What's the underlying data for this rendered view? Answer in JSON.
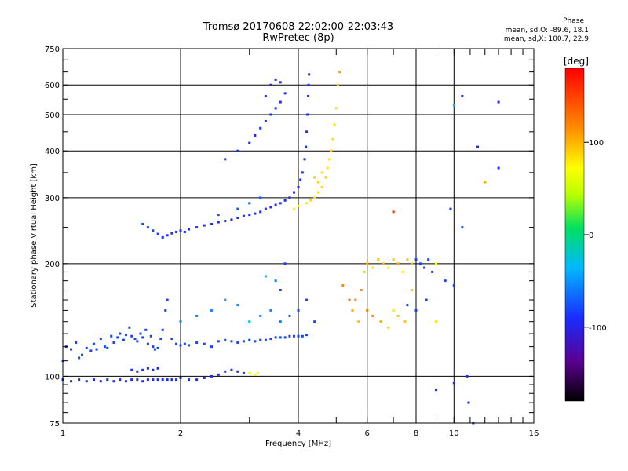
{
  "chart_data": {
    "type": "scatter",
    "title": "Tromsø 20170608 22:02:00-22:03:43",
    "subtitle": "RwPretec (8p)",
    "xlabel": "Frequency [MHz]",
    "ylabel": "Stationary phase Virtual Height [km]",
    "x_scale": "log",
    "y_scale": "log",
    "xlim": [
      1,
      16
    ],
    "ylim": [
      75,
      750
    ],
    "x_ticks": [
      1,
      2,
      4,
      6,
      8,
      10,
      16
    ],
    "y_ticks": [
      75,
      100,
      200,
      300,
      400,
      500,
      600,
      750
    ],
    "grid": true,
    "colorbar": {
      "label": "[deg]",
      "range": [
        -180,
        180
      ],
      "ticks": [
        100,
        0,
        -100
      ]
    },
    "phase_stats": {
      "header": "Phase",
      "O": "mean, sd,O: -89.6, 18.1",
      "X": "mean, sd,X: 100.7, 22.9"
    },
    "series": [
      {
        "points": [
          [
            1.0,
            98,
            -100
          ],
          [
            1.05,
            97,
            -100
          ],
          [
            1.1,
            98,
            -100
          ],
          [
            1.15,
            97,
            -100
          ],
          [
            1.2,
            98,
            -100
          ],
          [
            1.25,
            97,
            -100
          ],
          [
            1.3,
            98,
            -100
          ],
          [
            1.35,
            97,
            -100
          ],
          [
            1.4,
            98,
            -100
          ],
          [
            1.45,
            97,
            -100
          ],
          [
            1.5,
            98,
            -100
          ],
          [
            1.55,
            98,
            -100
          ],
          [
            1.6,
            97,
            -100
          ],
          [
            1.65,
            98,
            -100
          ],
          [
            1.7,
            98,
            -100
          ],
          [
            1.75,
            98,
            -100
          ],
          [
            1.8,
            98,
            -100
          ],
          [
            1.85,
            98,
            -100
          ],
          [
            1.9,
            98,
            -100
          ],
          [
            1.95,
            98,
            -100
          ],
          [
            2.0,
            99,
            -100
          ],
          [
            2.1,
            98,
            -100
          ],
          [
            2.2,
            98,
            -100
          ],
          [
            2.3,
            99,
            -100
          ],
          [
            2.4,
            100,
            -100
          ],
          [
            2.5,
            101,
            -100
          ],
          [
            1.5,
            104,
            -100
          ],
          [
            1.55,
            103,
            -100
          ],
          [
            1.6,
            104,
            -100
          ],
          [
            1.65,
            105,
            -100
          ],
          [
            1.7,
            104,
            -100
          ],
          [
            1.75,
            105,
            -100
          ],
          [
            2.6,
            103,
            -100
          ],
          [
            2.7,
            104,
            -100
          ],
          [
            2.8,
            103,
            -100
          ],
          [
            2.9,
            102,
            -100
          ],
          [
            3.0,
            102,
            80
          ],
          [
            3.1,
            101,
            85
          ],
          [
            3.15,
            102,
            90
          ]
        ]
      },
      {
        "points": [
          [
            1.0,
            110,
            -90
          ],
          [
            1.02,
            120,
            -90
          ],
          [
            1.05,
            118,
            -90
          ],
          [
            1.08,
            123,
            -90
          ],
          [
            1.1,
            112,
            -90
          ],
          [
            1.12,
            114,
            -90
          ],
          [
            1.15,
            119,
            -90
          ],
          [
            1.18,
            117,
            -90
          ],
          [
            1.2,
            122,
            -90
          ],
          [
            1.22,
            118,
            -90
          ],
          [
            1.25,
            126,
            -90
          ],
          [
            1.28,
            120,
            -90
          ],
          [
            1.3,
            119,
            -90
          ],
          [
            1.33,
            128,
            -90
          ],
          [
            1.35,
            123,
            -90
          ],
          [
            1.38,
            127,
            -90
          ],
          [
            1.4,
            130,
            -90
          ],
          [
            1.43,
            125,
            -90
          ],
          [
            1.45,
            129,
            -90
          ],
          [
            1.48,
            135,
            -90
          ],
          [
            1.5,
            128,
            -90
          ],
          [
            1.53,
            126,
            -90
          ],
          [
            1.55,
            124,
            -90
          ],
          [
            1.58,
            130,
            -90
          ],
          [
            1.6,
            127,
            -90
          ],
          [
            1.63,
            133,
            -90
          ],
          [
            1.65,
            122,
            -90
          ],
          [
            1.68,
            128,
            -90
          ],
          [
            1.7,
            120,
            -90
          ],
          [
            1.72,
            118,
            -90
          ],
          [
            1.75,
            119,
            -90
          ],
          [
            1.78,
            126,
            -90
          ],
          [
            1.8,
            133,
            -90
          ],
          [
            1.83,
            150,
            -90
          ],
          [
            1.85,
            160,
            -90
          ],
          [
            1.9,
            126,
            -90
          ],
          [
            1.95,
            122,
            -90
          ],
          [
            2.0,
            121,
            -90
          ],
          [
            2.05,
            122,
            -90
          ],
          [
            2.1,
            121,
            -90
          ],
          [
            2.2,
            123,
            -90
          ],
          [
            2.3,
            122,
            -90
          ],
          [
            2.4,
            120,
            -90
          ],
          [
            2.5,
            124,
            -90
          ],
          [
            2.6,
            125,
            -90
          ],
          [
            2.7,
            124,
            -90
          ],
          [
            2.8,
            123,
            -90
          ],
          [
            2.9,
            124,
            -90
          ],
          [
            3.0,
            125,
            -90
          ],
          [
            3.1,
            124,
            -90
          ],
          [
            3.2,
            125,
            -90
          ],
          [
            3.3,
            125,
            -90
          ],
          [
            3.4,
            126,
            -90
          ],
          [
            3.5,
            127,
            -90
          ],
          [
            3.6,
            127,
            -90
          ],
          [
            3.7,
            127,
            -90
          ],
          [
            3.8,
            128,
            -90
          ],
          [
            3.9,
            128,
            -90
          ],
          [
            4.0,
            128,
            -90
          ],
          [
            4.1,
            128,
            -90
          ],
          [
            4.2,
            129,
            -90
          ],
          [
            2.0,
            140,
            -60
          ],
          [
            2.2,
            145,
            -60
          ],
          [
            2.4,
            150,
            -60
          ],
          [
            2.6,
            160,
            -60
          ],
          [
            2.8,
            155,
            -60
          ],
          [
            3.0,
            140,
            -40
          ],
          [
            3.2,
            145,
            -60
          ],
          [
            3.4,
            150,
            -60
          ],
          [
            3.6,
            140,
            -70
          ],
          [
            3.8,
            145,
            -80
          ],
          [
            4.0,
            150,
            -90
          ],
          [
            4.2,
            160,
            -90
          ],
          [
            4.4,
            140,
            -90
          ],
          [
            3.6,
            170,
            -90
          ],
          [
            3.7,
            200,
            -90
          ],
          [
            3.5,
            180,
            -60
          ],
          [
            3.3,
            185,
            -40
          ]
        ]
      },
      {
        "points": [
          [
            5.5,
            150,
            120
          ],
          [
            5.6,
            160,
            130
          ],
          [
            5.7,
            140,
            110
          ],
          [
            5.8,
            170,
            125
          ],
          [
            5.9,
            190,
            110
          ],
          [
            6.0,
            200,
            120
          ],
          [
            6.2,
            195,
            100
          ],
          [
            6.4,
            205,
            110
          ],
          [
            6.6,
            200,
            115
          ],
          [
            6.8,
            195,
            100
          ],
          [
            7.0,
            205,
            110
          ],
          [
            7.2,
            200,
            120
          ],
          [
            7.4,
            190,
            100
          ],
          [
            7.6,
            205,
            110
          ],
          [
            7.8,
            200,
            110
          ],
          [
            8.0,
            205,
            -90
          ],
          [
            8.2,
            200,
            -90
          ],
          [
            8.4,
            195,
            -90
          ],
          [
            8.6,
            205,
            -90
          ],
          [
            8.8,
            190,
            -90
          ],
          [
            9.0,
            200,
            90
          ],
          [
            6.0,
            150,
            140
          ],
          [
            6.2,
            145,
            130
          ],
          [
            6.5,
            140,
            120
          ],
          [
            6.8,
            135,
            110
          ],
          [
            7.0,
            150,
            100
          ],
          [
            7.2,
            145,
            110
          ],
          [
            7.5,
            140,
            110
          ],
          [
            8.0,
            150,
            -90
          ],
          [
            8.5,
            160,
            -90
          ],
          [
            9.0,
            140,
            100
          ],
          [
            9.5,
            180,
            -90
          ],
          [
            10.0,
            175,
            -90
          ],
          [
            5.2,
            175,
            130
          ],
          [
            5.4,
            160,
            140
          ],
          [
            7.8,
            170,
            110
          ],
          [
            7.6,
            155,
            -90
          ],
          [
            10.5,
            250,
            -80
          ],
          [
            12.0,
            330,
            120
          ],
          [
            13.0,
            360,
            -100
          ],
          [
            10.8,
            100,
            -100
          ],
          [
            10.9,
            85,
            -100
          ],
          [
            9.0,
            92,
            -100
          ],
          [
            10.0,
            96,
            -100
          ],
          [
            11.2,
            75,
            -100
          ],
          [
            7.0,
            275,
            160
          ],
          [
            9.8,
            280,
            -90
          ],
          [
            10.5,
            560,
            -100
          ],
          [
            11.5,
            410,
            -100
          ],
          [
            13.0,
            540,
            -100
          ],
          [
            10.0,
            530,
            -30
          ]
        ]
      },
      {
        "points": [
          [
            1.8,
            235,
            -100
          ],
          [
            1.85,
            238,
            -100
          ],
          [
            1.9,
            241,
            -100
          ],
          [
            1.95,
            243,
            -100
          ],
          [
            2.0,
            245,
            -100
          ],
          [
            2.05,
            243,
            -100
          ],
          [
            2.1,
            247,
            -100
          ],
          [
            2.2,
            250,
            -100
          ],
          [
            2.3,
            253,
            -100
          ],
          [
            2.4,
            255,
            -100
          ],
          [
            2.5,
            258,
            -100
          ],
          [
            2.6,
            260,
            -100
          ],
          [
            2.7,
            262,
            -100
          ],
          [
            2.8,
            265,
            -100
          ],
          [
            2.9,
            268,
            -100
          ],
          [
            3.0,
            270,
            -100
          ],
          [
            3.1,
            272,
            -100
          ],
          [
            3.2,
            275,
            -100
          ],
          [
            3.3,
            280,
            -100
          ],
          [
            3.4,
            283,
            -100
          ],
          [
            3.5,
            287,
            -100
          ],
          [
            3.6,
            290,
            -100
          ],
          [
            3.7,
            295,
            -100
          ],
          [
            3.8,
            300,
            -100
          ],
          [
            3.9,
            310,
            -100
          ],
          [
            4.0,
            320,
            -100
          ],
          [
            4.05,
            335,
            -100
          ],
          [
            4.1,
            350,
            -100
          ],
          [
            4.15,
            380,
            -100
          ],
          [
            4.18,
            410,
            -100
          ],
          [
            4.2,
            450,
            -100
          ],
          [
            4.22,
            500,
            -100
          ],
          [
            4.24,
            560,
            -100
          ],
          [
            4.25,
            600,
            -100
          ],
          [
            4.26,
            640,
            -100
          ],
          [
            1.6,
            255,
            -90
          ],
          [
            1.65,
            250,
            -90
          ],
          [
            1.7,
            245,
            -90
          ],
          [
            1.75,
            240,
            -90
          ],
          [
            2.5,
            270,
            -80
          ],
          [
            2.8,
            280,
            -80
          ],
          [
            3.0,
            290,
            -80
          ],
          [
            3.2,
            300,
            -80
          ],
          [
            2.6,
            380,
            -100
          ],
          [
            2.8,
            400,
            -100
          ],
          [
            3.0,
            420,
            -100
          ],
          [
            3.1,
            440,
            -100
          ],
          [
            3.2,
            460,
            -100
          ],
          [
            3.3,
            480,
            -100
          ],
          [
            3.4,
            500,
            -100
          ],
          [
            3.5,
            520,
            -100
          ],
          [
            3.6,
            540,
            -100
          ],
          [
            3.7,
            570,
            -100
          ],
          [
            3.4,
            600,
            -100
          ],
          [
            3.5,
            620,
            -100
          ],
          [
            3.6,
            610,
            -100
          ],
          [
            3.3,
            560,
            -100
          ],
          [
            4.4,
            300,
            100
          ],
          [
            4.5,
            310,
            100
          ],
          [
            4.6,
            320,
            105
          ],
          [
            4.7,
            340,
            110
          ],
          [
            4.75,
            360,
            100
          ],
          [
            4.8,
            380,
            100
          ],
          [
            4.85,
            400,
            110
          ],
          [
            4.9,
            430,
            100
          ],
          [
            4.95,
            470,
            100
          ],
          [
            5.0,
            520,
            100
          ],
          [
            5.05,
            600,
            110
          ],
          [
            5.1,
            650,
            120
          ],
          [
            4.2,
            290,
            100
          ],
          [
            4.3,
            295,
            100
          ],
          [
            4.0,
            285,
            90
          ],
          [
            3.9,
            280,
            95
          ],
          [
            4.5,
            330,
            105
          ],
          [
            4.6,
            350,
            100
          ],
          [
            4.4,
            340,
            110
          ]
        ]
      }
    ]
  }
}
